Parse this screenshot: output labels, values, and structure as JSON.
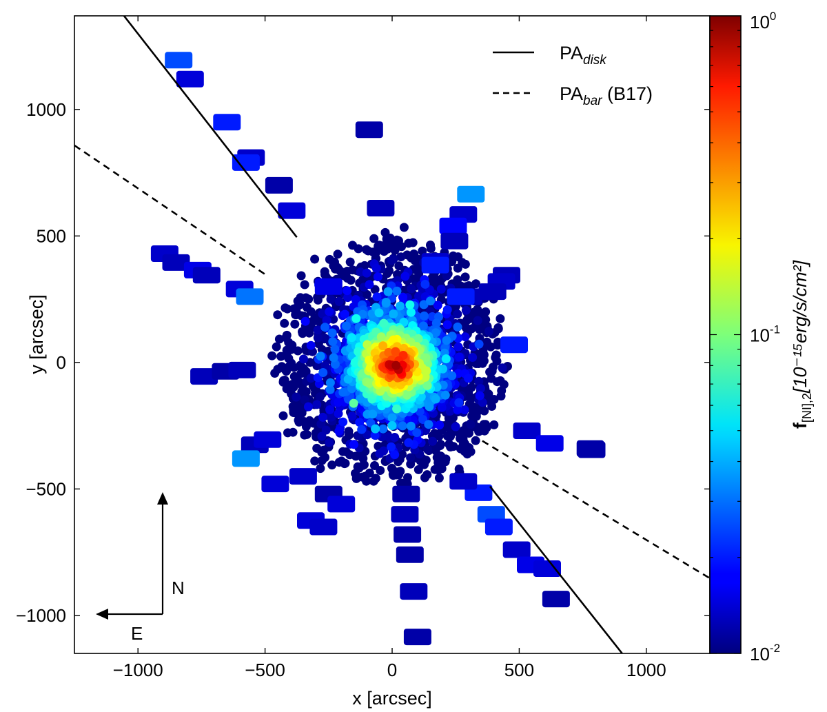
{
  "chart_data": {
    "type": "scatter",
    "title": "",
    "xlabel": "x [arcsec]",
    "ylabel": "y [arcsec]",
    "xlim": [
      -1250,
      1250
    ],
    "ylim": [
      -1150,
      1370
    ],
    "xticks": [
      -1000,
      -500,
      0,
      500,
      1000
    ],
    "yticks": [
      -1000,
      -500,
      0,
      500,
      1000
    ],
    "xtick_labels": [
      "−1000",
      "−500",
      "0",
      "500",
      "1000"
    ],
    "ytick_labels": [
      "−1000",
      "−500",
      "0",
      "500",
      "1000"
    ],
    "grid": false,
    "colorbar": {
      "label": "f[NI],2 [10^-15 erg/s/cm^2]",
      "label_main": "f",
      "label_sub": "[NI],2",
      "label_units": "[10⁻¹⁵erg/s/cm²]",
      "scale": "log",
      "range": [
        0.01,
        1
      ],
      "tick_base": "10",
      "ticks": [
        {
          "value": 1,
          "mantissa": "10",
          "exponent": "0"
        },
        {
          "value": 0.1,
          "mantissa": "10",
          "exponent": "-1"
        },
        {
          "value": 0.01,
          "mantissa": "10",
          "exponent": "-2"
        }
      ],
      "colormap": "jet"
    },
    "lines": [
      {
        "name": "PA_disk",
        "label_main": "PA",
        "label_sub": "disk",
        "label_suffix": "",
        "style": "solid",
        "segments": [
          [
            [
              -1055,
              1370
            ],
            [
              -375,
              495
            ]
          ],
          [
            [
              385,
              -490
            ],
            [
              905,
              -1150
            ]
          ]
        ]
      },
      {
        "name": "PA_bar (B17)",
        "label_main": "PA",
        "label_sub": "bar",
        "label_suffix": " (B17)",
        "style": "dashed",
        "segments": [
          [
            [
              -1250,
              858
            ],
            [
              -495,
              345
            ]
          ],
          [
            [
              355,
              -310
            ],
            [
              1250,
              -853
            ]
          ]
        ]
      }
    ],
    "compass": {
      "north": "N",
      "east": "E"
    },
    "isolated_patches": [
      {
        "x": -840,
        "y": 1195,
        "f": 0.025
      },
      {
        "x": -795,
        "y": 1120,
        "f": 0.015
      },
      {
        "x": -650,
        "y": 950,
        "f": 0.02
      },
      {
        "x": -90,
        "y": 920,
        "f": 0.012
      },
      {
        "x": -555,
        "y": 810,
        "f": 0.014
      },
      {
        "x": -575,
        "y": 790,
        "f": 0.02
      },
      {
        "x": -445,
        "y": 700,
        "f": 0.012
      },
      {
        "x": -395,
        "y": 600,
        "f": 0.015
      },
      {
        "x": -45,
        "y": 610,
        "f": 0.013
      },
      {
        "x": 310,
        "y": 665,
        "f": 0.035
      },
      {
        "x": 280,
        "y": 585,
        "f": 0.014
      },
      {
        "x": 240,
        "y": 540,
        "f": 0.018
      },
      {
        "x": 245,
        "y": 480,
        "f": 0.013
      },
      {
        "x": -895,
        "y": 430,
        "f": 0.014
      },
      {
        "x": -850,
        "y": 395,
        "f": 0.013
      },
      {
        "x": -765,
        "y": 365,
        "f": 0.016
      },
      {
        "x": -730,
        "y": 345,
        "f": 0.013
      },
      {
        "x": 170,
        "y": 400,
        "f": 0.014
      },
      {
        "x": 170,
        "y": 385,
        "f": 0.02
      },
      {
        "x": 450,
        "y": 345,
        "f": 0.013
      },
      {
        "x": 430,
        "y": 320,
        "f": 0.014
      },
      {
        "x": 395,
        "y": 280,
        "f": 0.013
      },
      {
        "x": -600,
        "y": 290,
        "f": 0.015
      },
      {
        "x": -560,
        "y": 260,
        "f": 0.03
      },
      {
        "x": -740,
        "y": -55,
        "f": 0.013
      },
      {
        "x": -655,
        "y": -35,
        "f": 0.012
      },
      {
        "x": -590,
        "y": -30,
        "f": 0.013
      },
      {
        "x": 480,
        "y": 70,
        "f": 0.02
      },
      {
        "x": 530,
        "y": -270,
        "f": 0.014
      },
      {
        "x": 620,
        "y": -320,
        "f": 0.016
      },
      {
        "x": 785,
        "y": -345,
        "f": 0.012
      },
      {
        "x": 780,
        "y": -340,
        "f": 0.012
      },
      {
        "x": -540,
        "y": -325,
        "f": 0.013
      },
      {
        "x": -490,
        "y": -305,
        "f": 0.015
      },
      {
        "x": -575,
        "y": -380,
        "f": 0.035
      },
      {
        "x": -460,
        "y": -480,
        "f": 0.015
      },
      {
        "x": -350,
        "y": -450,
        "f": 0.014
      },
      {
        "x": -250,
        "y": -520,
        "f": 0.012
      },
      {
        "x": -200,
        "y": -560,
        "f": 0.015
      },
      {
        "x": -320,
        "y": -625,
        "f": 0.015
      },
      {
        "x": -270,
        "y": -650,
        "f": 0.014
      },
      {
        "x": 55,
        "y": -520,
        "f": 0.012
      },
      {
        "x": 50,
        "y": -600,
        "f": 0.013
      },
      {
        "x": 60,
        "y": -680,
        "f": 0.012
      },
      {
        "x": 70,
        "y": -760,
        "f": 0.012
      },
      {
        "x": 85,
        "y": -905,
        "f": 0.013
      },
      {
        "x": 100,
        "y": -1085,
        "f": 0.012
      },
      {
        "x": 390,
        "y": -600,
        "f": 0.025
      },
      {
        "x": 420,
        "y": -650,
        "f": 0.02
      },
      {
        "x": 490,
        "y": -740,
        "f": 0.014
      },
      {
        "x": 545,
        "y": -800,
        "f": 0.016
      },
      {
        "x": 610,
        "y": -815,
        "f": 0.015
      },
      {
        "x": 645,
        "y": -935,
        "f": 0.012
      },
      {
        "x": 340,
        "y": -515,
        "f": 0.02
      },
      {
        "x": 280,
        "y": -470,
        "f": 0.014
      },
      {
        "x": 300,
        "y": 260,
        "f": 0.013
      },
      {
        "x": 270,
        "y": 260,
        "f": 0.02
      },
      {
        "x": -250,
        "y": 300,
        "f": 0.016
      }
    ]
  }
}
